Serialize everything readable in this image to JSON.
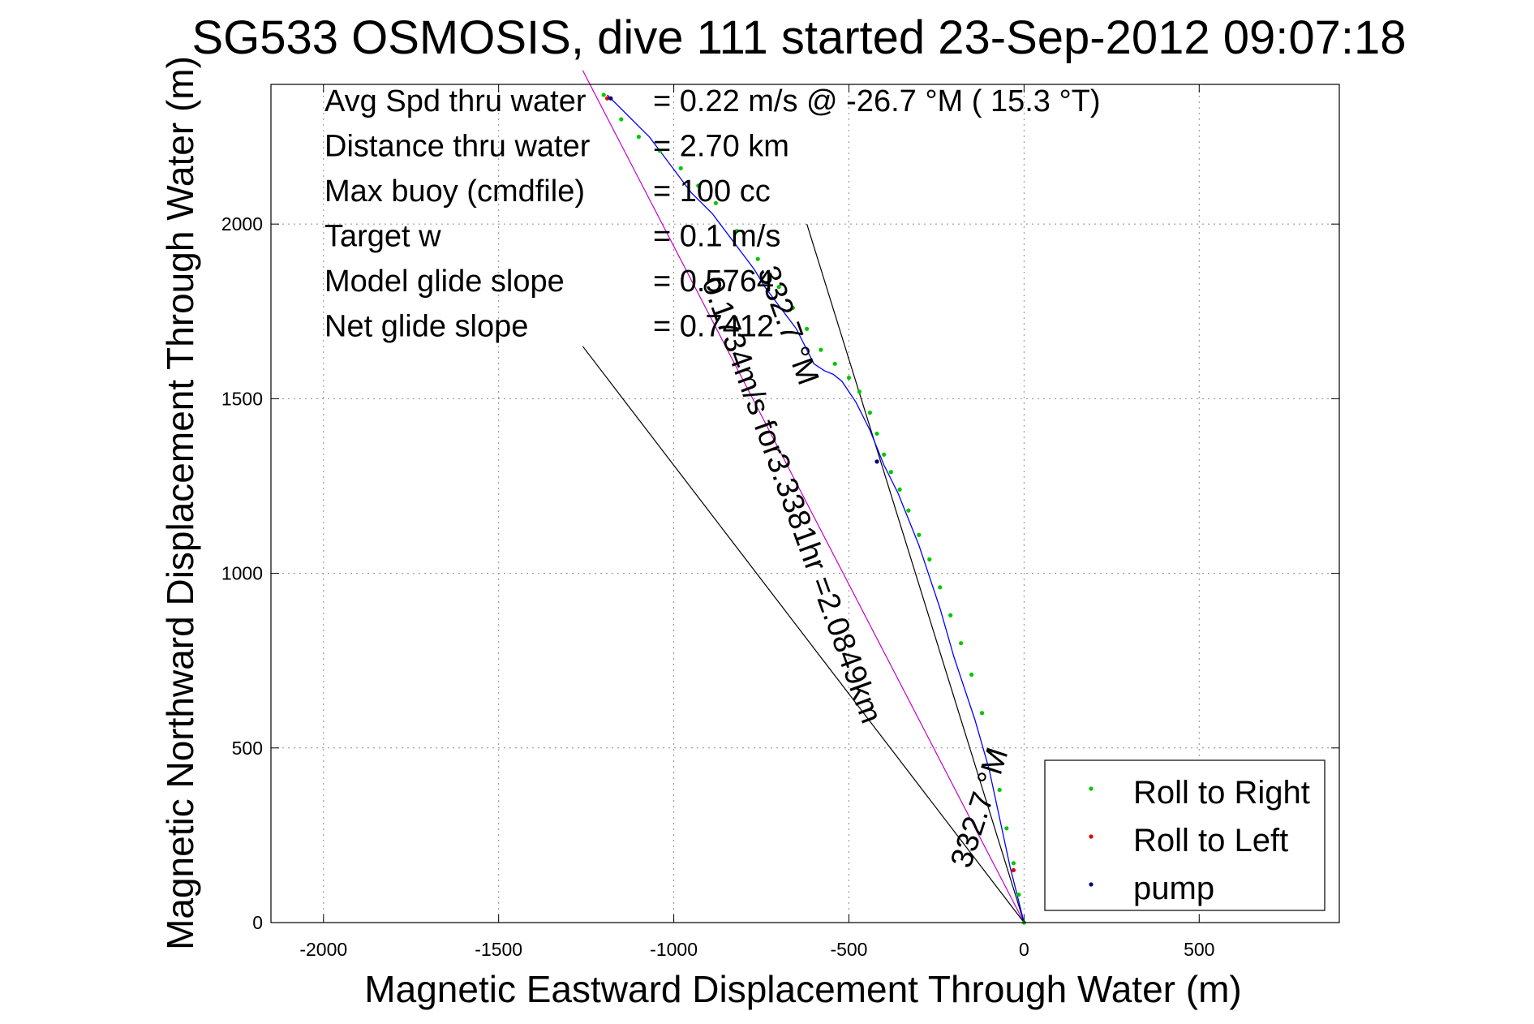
{
  "chart_data": {
    "type": "line",
    "title": "SG533 OSMOSIS, dive 111 started 23-Sep-2012 09:07:18",
    "xlabel": "Magnetic Eastward Displacement Through Water (m)",
    "ylabel": "Magnetic Northward Displacement Through Water (m)",
    "xlim": [
      -2150,
      900
    ],
    "ylim": [
      0,
      2400
    ],
    "x_ticks": [
      -2000,
      -1500,
      -1000,
      -500,
      0,
      500
    ],
    "y_ticks": [
      0,
      500,
      1000,
      1500,
      2000
    ],
    "grid": true,
    "legend_position": "bottom-right",
    "info": [
      {
        "label": "Avg Spd thru water",
        "value": "=  0.22 m/s @ -26.7 °M ( 15.3 °T)"
      },
      {
        "label": "Distance thru water",
        "value": "=  2.70 km"
      },
      {
        "label": "Max buoy (cmdfile)",
        "value": "= 100 cc"
      },
      {
        "label": "Target w",
        "value": "= 0.1 m/s"
      },
      {
        "label": "Model glide slope",
        "value": "= 0.5764"
      },
      {
        "label": "Net glide slope",
        "value": "= 0.7412"
      }
    ],
    "series": [
      {
        "name": "Roll to Right",
        "color": "#00c800",
        "x": [
          0,
          -15,
          -30,
          -50,
          -70,
          -95,
          -120,
          -150,
          -180,
          -210,
          -240,
          -270,
          -300,
          -330,
          -355,
          -380,
          -400,
          -420,
          -440,
          -470,
          -500,
          -540,
          -580,
          -620,
          -660,
          -700,
          -760,
          -820,
          -880,
          -930,
          -980,
          -1040,
          -1100,
          -1150,
          -1200
        ],
        "y": [
          0,
          80,
          170,
          270,
          380,
          490,
          600,
          710,
          800,
          880,
          960,
          1040,
          1110,
          1180,
          1240,
          1290,
          1340,
          1400,
          1460,
          1520,
          1560,
          1600,
          1640,
          1700,
          1760,
          1820,
          1900,
          1980,
          2060,
          2110,
          2160,
          2210,
          2250,
          2300,
          2370
        ]
      },
      {
        "name": "Roll to Left",
        "color": "#e00000",
        "x": [
          -1190,
          -30
        ],
        "y": [
          2360,
          150
        ]
      },
      {
        "name": "pump",
        "color": "#000080",
        "x": [
          -420,
          -1180
        ],
        "y": [
          1320,
          2360
        ]
      }
    ],
    "track": {
      "color": "#0000ff",
      "x": [
        0,
        -10,
        -25,
        -40,
        -55,
        -70,
        -85,
        -100,
        -120,
        -140,
        -160,
        -180,
        -200,
        -220,
        -240,
        -260,
        -280,
        -300,
        -320,
        -340,
        -360,
        -380,
        -400,
        -420,
        -440,
        -460,
        -480,
        -500,
        -520,
        -545,
        -570,
        -600,
        -615,
        -630,
        -650,
        -680,
        -710,
        -740,
        -770,
        -800,
        -830,
        -860,
        -890,
        -920,
        -950,
        -980,
        -1010,
        -1040,
        -1070,
        -1100,
        -1130,
        -1160,
        -1190
      ],
      "y": [
        0,
        40,
        100,
        160,
        230,
        300,
        370,
        440,
        510,
        580,
        640,
        700,
        760,
        830,
        900,
        960,
        1020,
        1080,
        1130,
        1180,
        1230,
        1270,
        1310,
        1360,
        1410,
        1450,
        1490,
        1520,
        1550,
        1570,
        1580,
        1600,
        1630,
        1660,
        1700,
        1740,
        1780,
        1820,
        1870,
        1910,
        1950,
        1990,
        2030,
        2060,
        2090,
        2130,
        2170,
        2210,
        2250,
        2280,
        2310,
        2340,
        2370
      ]
    },
    "reference_lines": [
      {
        "x": [
          0,
          -1260
        ],
        "y": [
          0,
          2440
        ],
        "color": "#c800c8"
      },
      {
        "x": [
          0,
          -620
        ],
        "y": [
          0,
          2000
        ],
        "color": "#000000"
      },
      {
        "x": [
          0,
          -1260
        ],
        "y": [
          0,
          1650
        ],
        "color": "#000000"
      }
    ],
    "annotations": [
      {
        "text": "0.1734m/s for3.3381hr =2.0849km",
        "x": -690,
        "y": 1200
      },
      {
        "text": "332.7 °M",
        "x": -700,
        "y": 1700
      },
      {
        "text": "332.7 °M",
        "x": -100,
        "y": 320
      }
    ]
  }
}
